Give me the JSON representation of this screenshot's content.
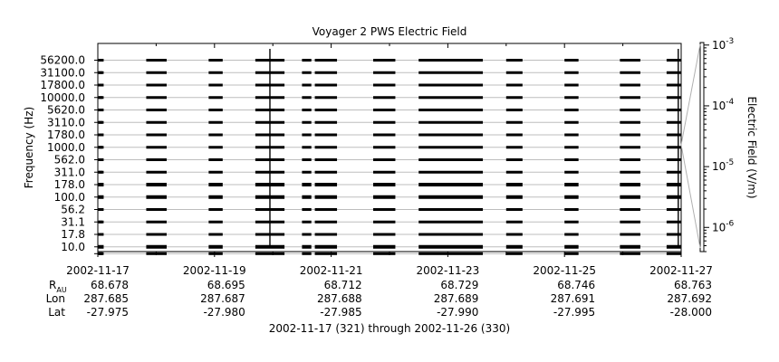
{
  "chart_data": {
    "type": "heatmap",
    "title": "Voyager 2 PWS Electric Field",
    "ylabel": "Frequency (Hz)",
    "colorbar_label": "Electric Field (V/m)",
    "colorbar_scale": "log",
    "colorbar_range": [
      4e-07,
      0.0011
    ],
    "colorbar_ticks": [
      {
        "label": "10",
        "exp": "-3",
        "value": 0.001
      },
      {
        "label": "10",
        "exp": "-4",
        "value": 0.0001
      },
      {
        "label": "10",
        "exp": "-5",
        "value": 1e-05
      },
      {
        "label": "10",
        "exp": "-6",
        "value": 1e-06
      }
    ],
    "y_tick_labels": [
      "56200.0",
      "31100.0",
      "17800.0",
      "10000.0",
      "5620.0",
      "3110.0",
      "1780.0",
      "1000.0",
      "562.0",
      "311.0",
      "178.0",
      "100.0",
      "56.2",
      "31.1",
      "17.8",
      "10.0"
    ],
    "x_range_days": [
      321,
      331
    ],
    "x_ticks": [
      {
        "date": "2002-11-17",
        "day": 321,
        "r": "68.678",
        "lon": "287.685",
        "lat": "-27.975"
      },
      {
        "date": "2002-11-19",
        "day": 323,
        "r": "68.695",
        "lon": "287.687",
        "lat": "-27.980"
      },
      {
        "date": "2002-11-21",
        "day": 325,
        "r": "68.712",
        "lon": "287.688",
        "lat": "-27.985"
      },
      {
        "date": "2002-11-23",
        "day": 327,
        "r": "68.729",
        "lon": "287.689",
        "lat": "-27.990"
      },
      {
        "date": "2002-11-25",
        "day": 329,
        "r": "68.746",
        "lon": "287.691",
        "lat": "-27.995"
      },
      {
        "date": "2002-11-27",
        "day": 331,
        "r": "68.763",
        "lon": "287.692",
        "lat": "-28.000"
      }
    ],
    "minor_x_days": [
      322,
      324,
      326,
      328,
      330
    ],
    "row_labels": {
      "r": "R",
      "r_sub": "AU",
      "lon": "Lon",
      "lat": "Lat"
    },
    "x_caption": "2002-11-17 (321) through 2002-11-26 (330)",
    "data_intervals": [
      {
        "start": 321.0,
        "end": 321.1
      },
      {
        "start": 321.83,
        "end": 322.18
      },
      {
        "start": 322.9,
        "end": 323.14
      },
      {
        "start": 323.7,
        "end": 324.2
      },
      {
        "start": 324.5,
        "end": 324.66
      },
      {
        "start": 324.72,
        "end": 325.1
      },
      {
        "start": 325.72,
        "end": 326.1
      },
      {
        "start": 326.5,
        "end": 327.6
      },
      {
        "start": 328.0,
        "end": 328.28
      },
      {
        "start": 329.0,
        "end": 329.24
      },
      {
        "start": 329.95,
        "end": 330.3
      },
      {
        "start": 330.75,
        "end": 331.0
      }
    ],
    "noise_rows": [
      10,
      11,
      15
    ],
    "spikes": [
      {
        "day": 323.95,
        "top_row": 0
      },
      {
        "day": 330.95,
        "top_row": 0
      }
    ]
  }
}
